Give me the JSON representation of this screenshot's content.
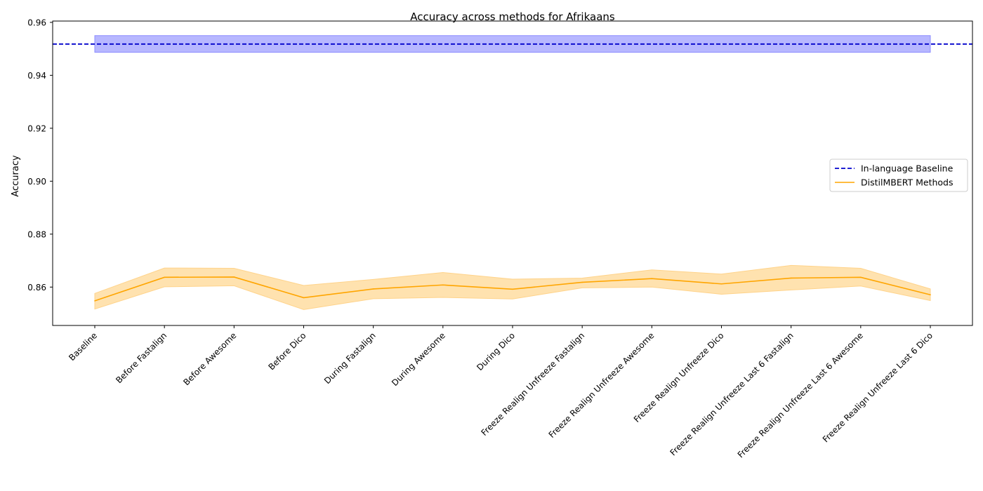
{
  "chart_data": {
    "type": "line",
    "title": "Accuracy across methods for Afrikaans",
    "xlabel": "",
    "ylabel": "Accuracy",
    "ylim": [
      0.8455,
      0.9605
    ],
    "yticks": [
      0.86,
      0.88,
      0.9,
      0.92,
      0.94,
      0.96
    ],
    "ytick_labels": [
      "0.86",
      "0.88",
      "0.90",
      "0.92",
      "0.94",
      "0.96"
    ],
    "grid": false,
    "legend_position": "center-right",
    "categories": [
      "Baseline",
      "Before Fastalign",
      "Before Awesome",
      "Before Dico",
      "During Fastalign",
      "During Awesome",
      "During Dico",
      "Freeze Realign Unfreeze Fastalign",
      "Freeze Realign Unfreeze Awesome",
      "Freeze Realign Unfreeze Dico",
      "Freeze Realign Unfreeze Last 6 Fastalign",
      "Freeze Realign Unfreeze Last 6 Awesome",
      "Freeze Realign Unfreeze Last 6 Dico"
    ],
    "baseline": {
      "name": "In-language Baseline",
      "value": 0.9518,
      "band_low": 0.9487,
      "band_high": 0.955,
      "color": "#0000cc",
      "band_color": "#aaaaff",
      "linestyle": "dashed"
    },
    "series": [
      {
        "name": "DistilMBERT Methods",
        "color": "#ffa500",
        "band_color": "#ffdfa6",
        "values": [
          0.8548,
          0.8637,
          0.8638,
          0.856,
          0.8593,
          0.8608,
          0.8592,
          0.8618,
          0.8632,
          0.8612,
          0.8634,
          0.8637,
          0.8571
        ],
        "band_low": [
          0.8517,
          0.8601,
          0.8605,
          0.8515,
          0.8556,
          0.8561,
          0.8555,
          0.8597,
          0.86,
          0.8573,
          0.8589,
          0.8604,
          0.8549
        ],
        "band_high": [
          0.8576,
          0.8672,
          0.8671,
          0.8606,
          0.8629,
          0.8655,
          0.863,
          0.8634,
          0.8665,
          0.8649,
          0.8682,
          0.8671,
          0.8593
        ]
      }
    ]
  }
}
